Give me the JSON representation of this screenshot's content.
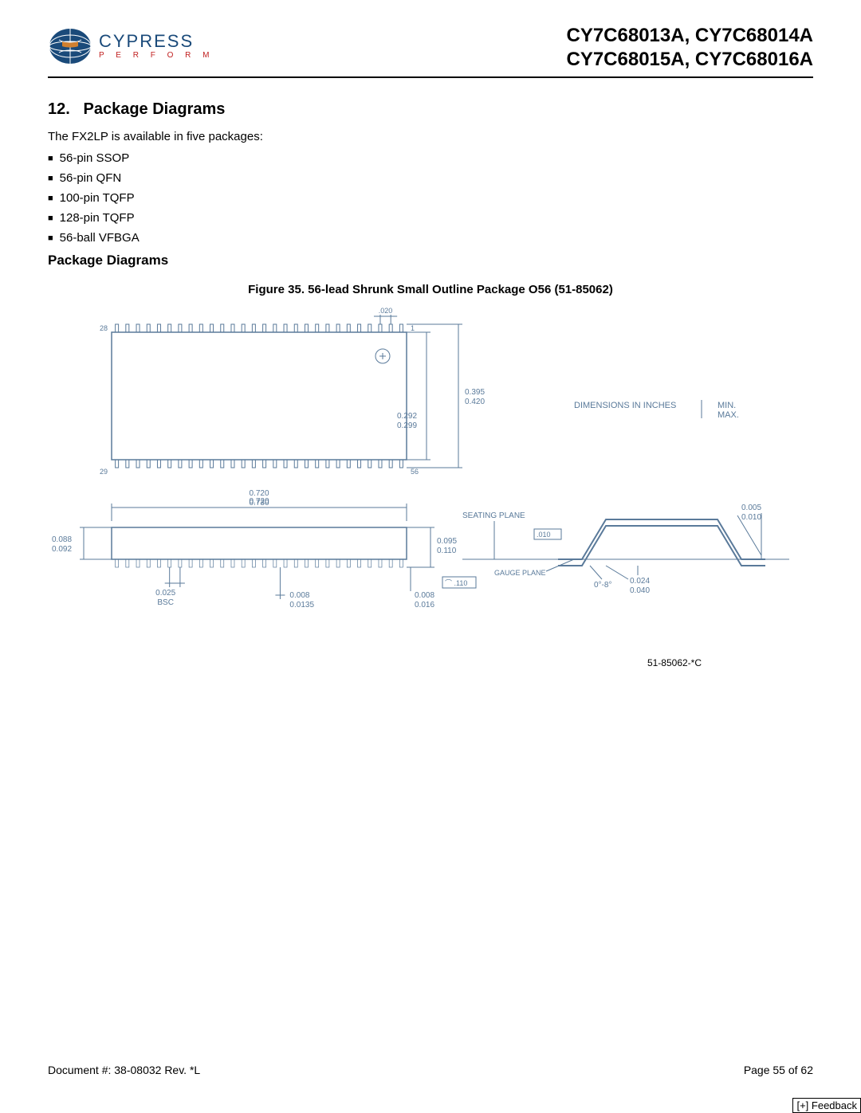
{
  "header": {
    "logo": {
      "brand": "CYPRESS",
      "tagline": "P E R F O R M",
      "stripe_colors": [
        "#1a4a7a",
        "#2a5a8a",
        "#3a6a9a"
      ]
    },
    "parts_line1": "CY7C68013A, CY7C68014A",
    "parts_line2": "CY7C68015A, CY7C68016A"
  },
  "section": {
    "number": "12.",
    "title": "Package Diagrams"
  },
  "intro": "The FX2LP is available in five packages:",
  "packages": [
    "56-pin SSOP",
    "56-pin QFN",
    "100-pin TQFP",
    "128-pin TQFP",
    "56-ball VFBGA"
  ],
  "subhead": "Package Diagrams",
  "figure": {
    "caption": "Figure 35.  56-lead Shrunk Small Outline Package O56 (51-85062)",
    "revision": "51-85062-*C",
    "units_note": {
      "l1": "DIMENSIONS IN INCHES",
      "l2": "MIN.",
      "l3": "MAX."
    },
    "top_view": {
      "pins_per_side": 28,
      "pin_labels": {
        "tl": "28",
        "tr": "1",
        "bl": "29",
        "br": "56"
      },
      "pitch_dim": ".020",
      "body_height": {
        "min": "0.395",
        "max": "0.420"
      },
      "lead_span": {
        "min": "0.292",
        "max": "0.299"
      }
    },
    "side_view": {
      "overall_width": {
        "min": "0.720",
        "max": "0.730"
      },
      "body_thickness": {
        "min": "0.088",
        "max": "0.092"
      },
      "lead_width": {
        "min": "0.095",
        "max": "0.110"
      },
      "pitch": "0.025",
      "pitch_note": "BSC",
      "lead_thick": {
        "min": "0.008",
        "max": "0.0135"
      },
      "foot_len": {
        "min": "0.008",
        "max": "0.016"
      }
    },
    "detail": {
      "seating": "SEATING PLANE",
      "gauge": "GAUGE PLANE",
      "coplanarity": ".010",
      "flatness": ".110",
      "angle": "0°-8°",
      "foot": {
        "min": "0.024",
        "max": "0.040"
      },
      "tip": {
        "min": "0.005",
        "max": "0.010"
      }
    },
    "line_color": "#5a7a9a",
    "text_color": "#5a7a9a",
    "black": "#000000"
  },
  "footer": {
    "doc": "Document #: 38-08032 Rev. *L",
    "page": "Page 55 of 62",
    "feedback": "[+] Feedback"
  }
}
